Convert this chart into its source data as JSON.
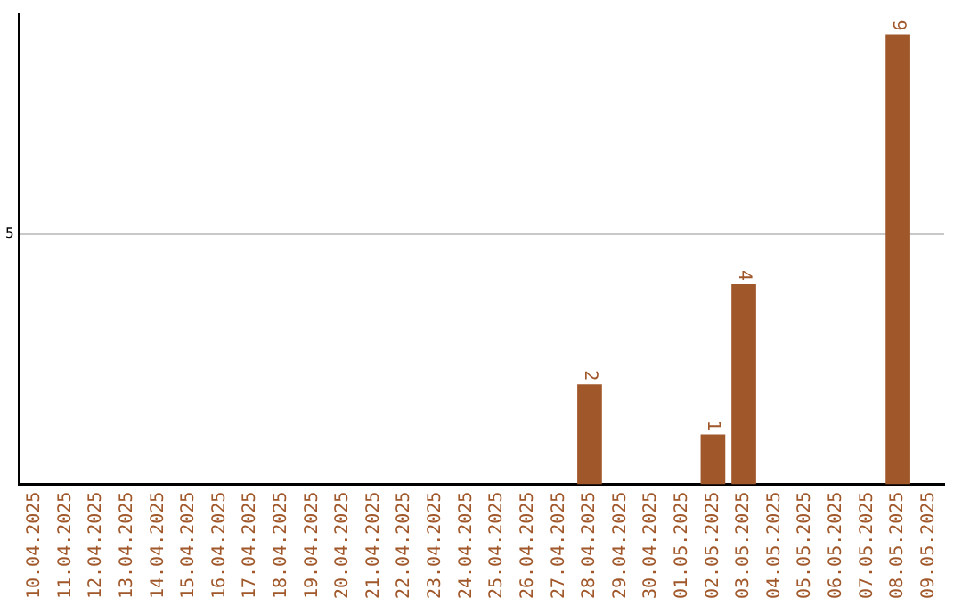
{
  "chart_data": {
    "type": "bar",
    "categories": [
      "10.04.2025",
      "11.04.2025",
      "12.04.2025",
      "13.04.2025",
      "14.04.2025",
      "15.04.2025",
      "16.04.2025",
      "17.04.2025",
      "18.04.2025",
      "19.04.2025",
      "20.04.2025",
      "21.04.2025",
      "22.04.2025",
      "23.04.2025",
      "24.04.2025",
      "25.04.2025",
      "26.04.2025",
      "27.04.2025",
      "28.04.2025",
      "29.04.2025",
      "30.04.2025",
      "01.05.2025",
      "02.05.2025",
      "03.05.2025",
      "04.05.2025",
      "05.05.2025",
      "06.05.2025",
      "07.05.2025",
      "08.05.2025",
      "09.05.2025"
    ],
    "values": [
      null,
      null,
      null,
      null,
      null,
      null,
      null,
      null,
      null,
      null,
      null,
      null,
      null,
      null,
      null,
      null,
      null,
      null,
      2,
      null,
      null,
      null,
      1,
      4,
      null,
      null,
      null,
      null,
      9,
      null
    ],
    "color": "#a0572a",
    "ylim": [
      0,
      9.4
    ],
    "yticks": [
      5
    ],
    "grid": "y",
    "legend": false,
    "data_labels": true
  }
}
